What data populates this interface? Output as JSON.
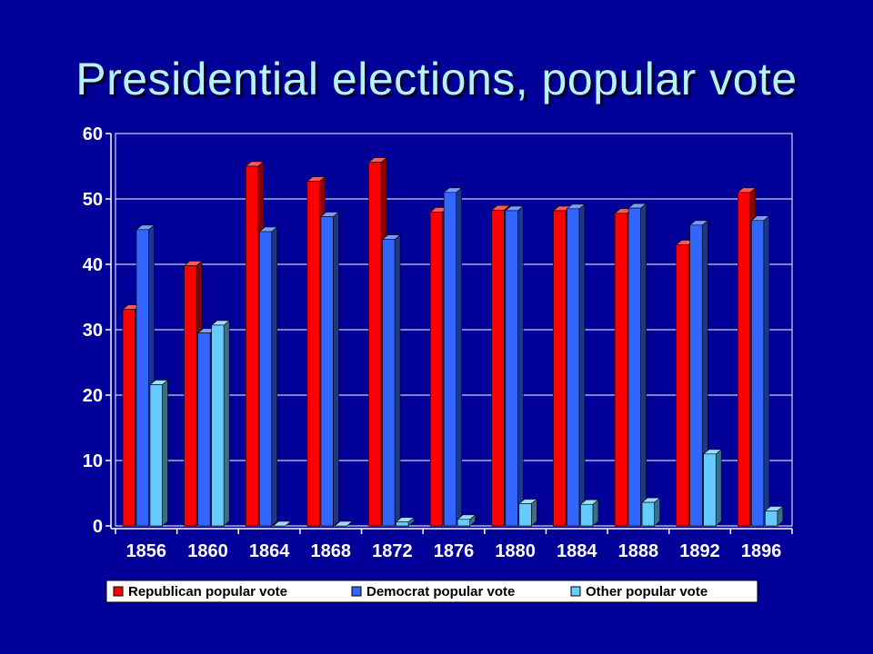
{
  "slide": {
    "title": "Presidential elections, popular vote"
  },
  "chart_data": {
    "type": "bar",
    "categories": [
      "1856",
      "1860",
      "1864",
      "1868",
      "1872",
      "1876",
      "1880",
      "1884",
      "1888",
      "1892",
      "1896"
    ],
    "series": [
      {
        "name": "Republican popular vote",
        "color": "#ff0000",
        "values": [
          33.1,
          39.8,
          55.0,
          52.7,
          55.6,
          48.0,
          48.3,
          48.2,
          47.8,
          43.0,
          51.0
        ]
      },
      {
        "name": "Democrat popular vote",
        "color": "#3366ff",
        "values": [
          45.3,
          29.5,
          45.0,
          47.3,
          43.8,
          51.0,
          48.2,
          48.5,
          48.6,
          46.0,
          46.7
        ]
      },
      {
        "name": "Other popular vote",
        "color": "#66ccff",
        "values": [
          21.6,
          30.7,
          0,
          0,
          0.6,
          1.0,
          3.4,
          3.3,
          3.6,
          11.0,
          2.3
        ]
      }
    ],
    "ylim": [
      0,
      60
    ],
    "yticks": [
      0,
      10,
      20,
      30,
      40,
      50,
      60
    ],
    "xlabel": "",
    "ylabel": "",
    "grid": true,
    "legend_position": "bottom",
    "colors": {
      "plot_background": "#000099",
      "gridline": "#ffffff",
      "axis": "#ffffff",
      "legend_background": "#ffffff"
    }
  }
}
